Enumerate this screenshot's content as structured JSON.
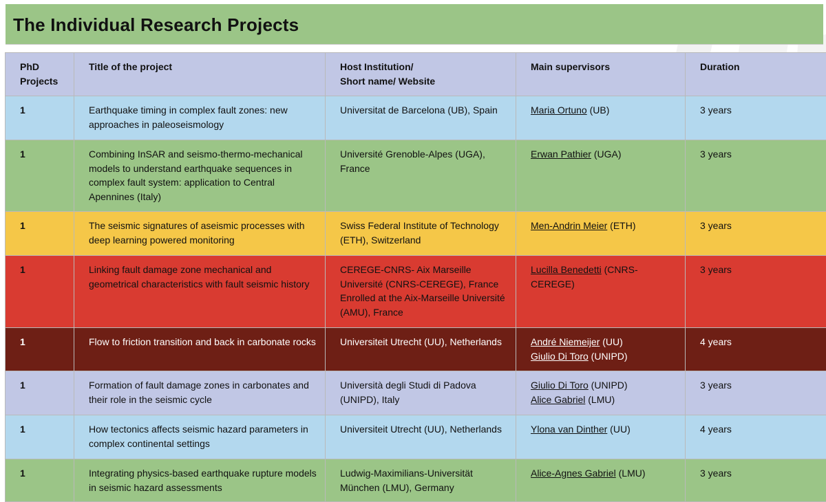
{
  "page": {
    "title": "The Individual Research Projects"
  },
  "colors": {
    "title_bar": "#9bc587",
    "header_row": "#c1c7e5",
    "blue": "#b3d8ee",
    "green": "#9bc587",
    "yellow": "#f5c748",
    "red": "#d93b31",
    "maroon": "#6e1f15",
    "lavender": "#c1c7e5"
  },
  "table": {
    "headers": {
      "phd": [
        "PhD",
        "Projects"
      ],
      "title": "Title of the project",
      "host": [
        "Host Institution/",
        "Short name/ Website"
      ],
      "supervisors": "Main supervisors",
      "duration": "Duration"
    },
    "rows": [
      {
        "phd": "1",
        "title": "Earthquake timing in complex fault zones: new approaches in paleoseismology",
        "host": "Universitat de Barcelona (UB), Spain",
        "supervisors": [
          {
            "name": "Maria Ortuno",
            "affil": " (UB)"
          }
        ],
        "duration": "3 years"
      },
      {
        "phd": "1",
        "title": "Combining InSAR and seismo-thermo-mechanical models to understand earthquake sequences in complex fault system: application to Central Apennines (Italy)",
        "host": "Université Grenoble-Alpes (UGA), France",
        "supervisors": [
          {
            "name": "Erwan Pathier",
            "affil": " (UGA)"
          }
        ],
        "duration": "3 years"
      },
      {
        "phd": "1",
        "title": "The seismic signatures of aseismic processes with deep learning powered monitoring",
        "host": "Swiss Federal Institute of Technology (ETH), Switzerland",
        "supervisors": [
          {
            "name": "Men-Andrin Meier",
            "affil": " (ETH)"
          }
        ],
        "duration": "3 years"
      },
      {
        "phd": "1",
        "title": "Linking fault damage zone mechanical and geometrical characteristics with fault seismic history",
        "host": "CEREGE-CNRS- Aix Marseille Université (CNRS-CEREGE), France Enrolled at the Aix-Marseille Université (AMU), France",
        "supervisors": [
          {
            "name": "Lucilla Benedetti",
            "affil": " (CNRS-CEREGE)"
          }
        ],
        "duration": "3 years"
      },
      {
        "phd": "1",
        "title": "Flow to friction transition and back in carbonate rocks",
        "host": "Universiteit Utrecht (UU), Netherlands",
        "supervisors": [
          {
            "name": "André Niemeijer",
            "affil": " (UU)"
          },
          {
            "name": "Giulio Di Toro",
            "affil": " (UNIPD)"
          }
        ],
        "duration": "4 years"
      },
      {
        "phd": "1",
        "title": "Formation of fault damage zones in carbonates and their role in the seismic cycle",
        "host": "Università degli Studi di Padova (UNIPD), Italy",
        "supervisors": [
          {
            "name": "Giulio Di Toro",
            "affil": " (UNIPD)"
          },
          {
            "name": "Alice Gabriel",
            "affil": " (LMU)"
          }
        ],
        "duration": "3 years"
      },
      {
        "phd": "1",
        "title": "How tectonics affects seismic hazard parameters in complex continental settings",
        "host": "Universiteit Utrecht (UU), Netherlands",
        "supervisors": [
          {
            "name": "Ylona van Dinther",
            "affil": " (UU)"
          }
        ],
        "duration": "4 years"
      },
      {
        "phd": "1",
        "title": "Integrating physics-based earthquake rupture models in seismic hazard assessments",
        "host": "Ludwig-Maximilians-Universität München (LMU), Germany",
        "supervisors": [
          {
            "name": "Alice-Agnes Gabriel",
            "affil": " (LMU)"
          }
        ],
        "duration": "3 years"
      }
    ]
  }
}
